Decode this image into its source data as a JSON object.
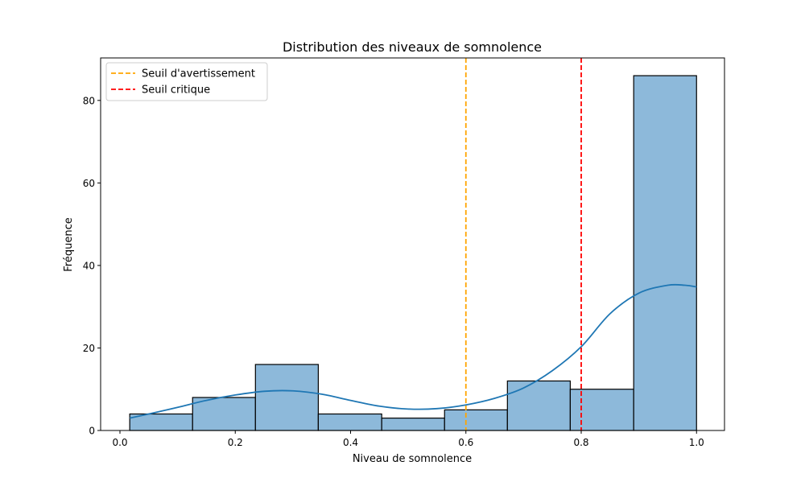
{
  "chart_data": {
    "type": "bar",
    "title": "Distribution des niveaux de somnolence",
    "xlabel": "Niveau de somnolence",
    "ylabel": "Fréquence",
    "xlim": [
      -0.0335,
      1.0485
    ],
    "ylim": [
      0,
      90.3
    ],
    "grid": false,
    "legend_position": "top-left",
    "x_ticks": [
      {
        "value": 0.0,
        "label": "0.0"
      },
      {
        "value": 0.2,
        "label": "0.2"
      },
      {
        "value": 0.4,
        "label": "0.4"
      },
      {
        "value": 0.6,
        "label": "0.6"
      },
      {
        "value": 0.8,
        "label": "0.8"
      },
      {
        "value": 1.0,
        "label": "1.0"
      }
    ],
    "y_ticks": [
      {
        "value": 0,
        "label": "0"
      },
      {
        "value": 20,
        "label": "20"
      },
      {
        "value": 40,
        "label": "40"
      },
      {
        "value": 60,
        "label": "60"
      },
      {
        "value": 80,
        "label": "80"
      }
    ],
    "bins": [
      {
        "x0": 0.017,
        "x1": 0.126,
        "count": 4
      },
      {
        "x0": 0.126,
        "x1": 0.235,
        "count": 8
      },
      {
        "x0": 0.235,
        "x1": 0.344,
        "count": 16
      },
      {
        "x0": 0.344,
        "x1": 0.454,
        "count": 4
      },
      {
        "x0": 0.454,
        "x1": 0.563,
        "count": 3
      },
      {
        "x0": 0.563,
        "x1": 0.672,
        "count": 5
      },
      {
        "x0": 0.672,
        "x1": 0.781,
        "count": 12
      },
      {
        "x0": 0.781,
        "x1": 0.891,
        "count": 10
      },
      {
        "x0": 0.891,
        "x1": 1.0,
        "count": 86
      }
    ],
    "kde": {
      "x": [
        0.017,
        0.05,
        0.1,
        0.15,
        0.2,
        0.25,
        0.3,
        0.35,
        0.4,
        0.45,
        0.5,
        0.55,
        0.6,
        0.65,
        0.7,
        0.75,
        0.8,
        0.85,
        0.9,
        0.95,
        0.98,
        1.0
      ],
      "y": [
        3.0,
        4.0,
        5.6,
        7.3,
        8.6,
        9.5,
        9.6,
        8.8,
        7.3,
        5.9,
        5.2,
        5.3,
        6.2,
        7.8,
        10.3,
        14.5,
        20.3,
        28.3,
        33.3,
        35.2,
        35.2,
        34.8
      ]
    },
    "reference_lines": [
      {
        "name": "Seuil d'avertissement",
        "x": 0.6,
        "color": "#FFA500",
        "style": "dashed"
      },
      {
        "name": "Seuil critique",
        "x": 0.8,
        "color": "#FF0000",
        "style": "dashed"
      }
    ],
    "colors": {
      "bar_fill": "#8DB9DA",
      "bar_edge": "#000000",
      "kde_line": "#1F77B4"
    }
  }
}
